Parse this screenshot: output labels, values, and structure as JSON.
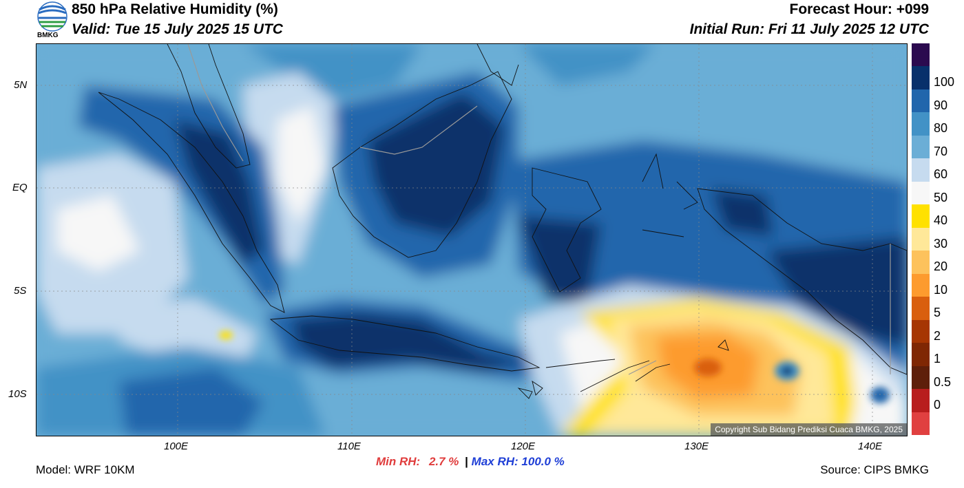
{
  "header": {
    "title": "850 hPa Relative Humidity (%)",
    "valid": "Valid: Tue 15 July 2025 15 UTC",
    "forecast_hour": "Forecast Hour: +099",
    "initial_run": "Initial Run: Fri 11 July 2025 12 UTC",
    "logo_text": "BMKG"
  },
  "axes": {
    "lat_ticks": [
      "5N",
      "EQ",
      "5S",
      "10S"
    ],
    "lon_ticks": [
      "100E",
      "110E",
      "120E",
      "130E",
      "140E"
    ]
  },
  "colorbar": {
    "labels": [
      "100",
      "90",
      "80",
      "70",
      "60",
      "50",
      "40",
      "30",
      "20",
      "10",
      "5",
      "2",
      "1",
      "0.5",
      "0"
    ],
    "colors": [
      "#2b0a4f",
      "#08306b",
      "#2166ac",
      "#4292c6",
      "#6baed6",
      "#c6dbef",
      "#f7f7f7",
      "#ffe100",
      "#ffe899",
      "#fdc25c",
      "#fd9b2e",
      "#d95f0e",
      "#a63603",
      "#7f2704",
      "#5e1f0a",
      "#b81d1d",
      "#e04040"
    ]
  },
  "footer": {
    "model": "Model: WRF 10KM",
    "min_rh_label": "Min RH:",
    "min_rh_value": "2.7 %",
    "separator": "|",
    "max_rh_label": "Max RH:",
    "max_rh_value": "100.0 %",
    "source": "Source: CIPS BMKG",
    "copyright": "Copyright Sub Bidang Prediksi Cuaca BMKG, 2025"
  },
  "colors": {
    "min_rh": "#e03c3c",
    "max_rh": "#1f3fd6"
  }
}
